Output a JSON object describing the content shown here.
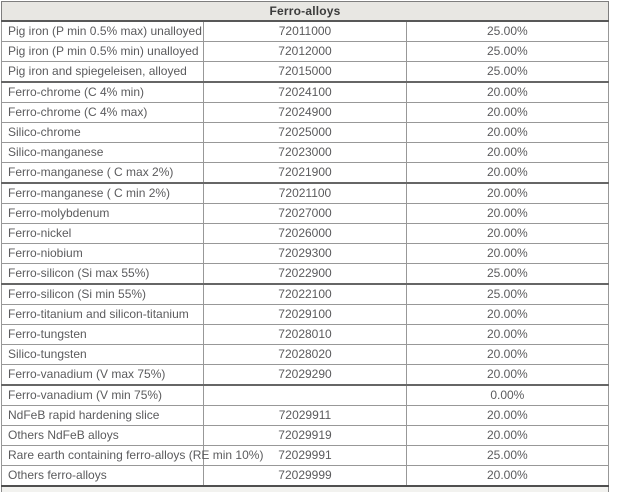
{
  "table": {
    "title": "Ferro-alloys",
    "rows": [
      {
        "product": "Pig iron (P min 0.5% max) unalloyed",
        "hs_code": "72011000",
        "rate": "25.00%"
      },
      {
        "product": "Pig iron (P min 0.5% min) unalloyed",
        "hs_code": "72012000",
        "rate": "25.00%"
      },
      {
        "product": "Pig iron and spiegeleisen, alloyed",
        "hs_code": "72015000",
        "rate": "25.00%"
      },
      {
        "product": "Ferro-chrome (C 4% min)",
        "hs_code": "72024100",
        "rate": "20.00%"
      },
      {
        "product": "Ferro-chrome (C 4% max)",
        "hs_code": "72024900",
        "rate": "20.00%"
      },
      {
        "product": "Silico-chrome",
        "hs_code": "72025000",
        "rate": "20.00%"
      },
      {
        "product": "Silico-manganese",
        "hs_code": "72023000",
        "rate": "20.00%"
      },
      {
        "product": "Ferro-manganese ( C max 2%)",
        "hs_code": "72021900",
        "rate": "20.00%"
      },
      {
        "product": "Ferro-manganese ( C min 2%)",
        "hs_code": "72021100",
        "rate": "20.00%"
      },
      {
        "product": "Ferro-molybdenum",
        "hs_code": "72027000",
        "rate": "20.00%"
      },
      {
        "product": "Ferro-nickel",
        "hs_code": "72026000",
        "rate": "20.00%"
      },
      {
        "product": "Ferro-niobium",
        "hs_code": "72029300",
        "rate": "20.00%"
      },
      {
        "product": "Ferro-silicon (Si max 55%)",
        "hs_code": "72022900",
        "rate": "25.00%"
      },
      {
        "product": "Ferro-silicon (Si min 55%)",
        "hs_code": "72022100",
        "rate": "25.00%"
      },
      {
        "product": "Ferro-titanium and silicon-titanium",
        "hs_code": "72029100",
        "rate": "20.00%"
      },
      {
        "product": "Ferro-tungsten",
        "hs_code": "72028010",
        "rate": "20.00%"
      },
      {
        "product": "Silico-tungsten",
        "hs_code": "72028020",
        "rate": "20.00%"
      },
      {
        "product": "Ferro-vanadium (V max 75%)",
        "hs_code": "72029290",
        "rate": "20.00%"
      },
      {
        "product": "Ferro-vanadium (V min 75%)",
        "hs_code": "",
        "rate": "0.00%"
      },
      {
        "product": "NdFeB rapid hardening slice",
        "hs_code": "72029911",
        "rate": "20.00%"
      },
      {
        "product": "Others NdFeB alloys",
        "hs_code": "72029919",
        "rate": "20.00%"
      },
      {
        "product": "Rare earth containing ferro-alloys (RE min 10%)",
        "hs_code": "72029991",
        "rate": "25.00%"
      },
      {
        "product": "Others ferro-alloys",
        "hs_code": "72029999",
        "rate": "20.00%"
      }
    ]
  },
  "colors": {
    "header_bg": "#e8e7e3",
    "cell_text": "#5b5b5d",
    "grid_line": "#989898",
    "heavy_line": "#4f4f4f"
  }
}
